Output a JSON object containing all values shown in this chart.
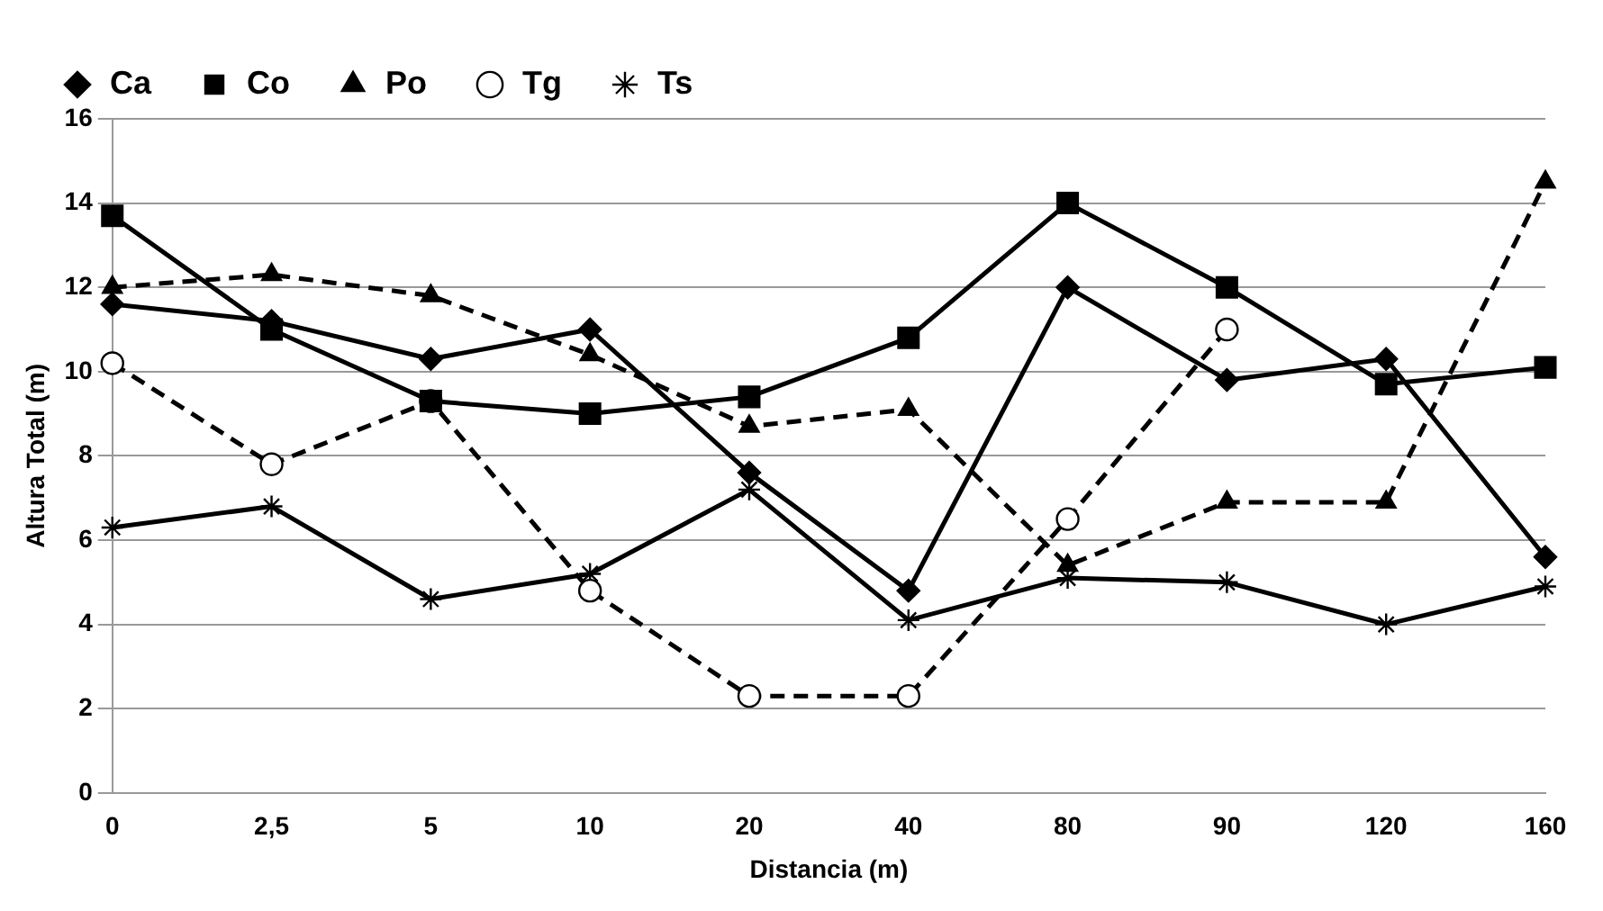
{
  "chart_data": {
    "type": "line",
    "xlabel": "Distancia (m)",
    "ylabel": "Altura Total (m)",
    "categories": [
      "0",
      "2,5",
      "5",
      "10",
      "20",
      "40",
      "80",
      "90",
      "120",
      "160"
    ],
    "ylim": [
      0,
      16
    ],
    "yticks": [
      0,
      2,
      4,
      6,
      8,
      10,
      12,
      14,
      16
    ],
    "grid": "y",
    "legend": "top left",
    "series": [
      {
        "name": "Ca",
        "color": "#000000",
        "marker": "diamond",
        "line_style": "solid",
        "values": [
          11.6,
          11.2,
          10.3,
          11.0,
          7.6,
          4.8,
          12.0,
          9.8,
          10.3,
          5.6
        ]
      },
      {
        "name": "Co",
        "color": "#000000",
        "marker": "square",
        "line_style": "solid",
        "values": [
          13.7,
          11.0,
          9.3,
          9.0,
          9.4,
          10.8,
          14.0,
          12.0,
          9.7,
          10.1
        ]
      },
      {
        "name": "Po",
        "color": "#000000",
        "marker": "triangle",
        "line_style": "dashed",
        "values": [
          12.0,
          12.3,
          11.8,
          10.4,
          8.7,
          9.1,
          5.4,
          6.9,
          6.9,
          14.5
        ]
      },
      {
        "name": "Tg",
        "color": "#000000",
        "marker": "circle",
        "line_style": "dashed",
        "values": [
          10.2,
          7.8,
          9.3,
          4.8,
          2.3,
          2.3,
          6.5,
          11.0,
          null,
          null
        ]
      },
      {
        "name": "Ts",
        "color": "#000000",
        "marker": "cross",
        "line_style": "solid",
        "values": [
          6.3,
          6.8,
          4.6,
          5.2,
          7.2,
          4.1,
          5.1,
          5.0,
          4.0,
          4.9
        ]
      }
    ]
  }
}
